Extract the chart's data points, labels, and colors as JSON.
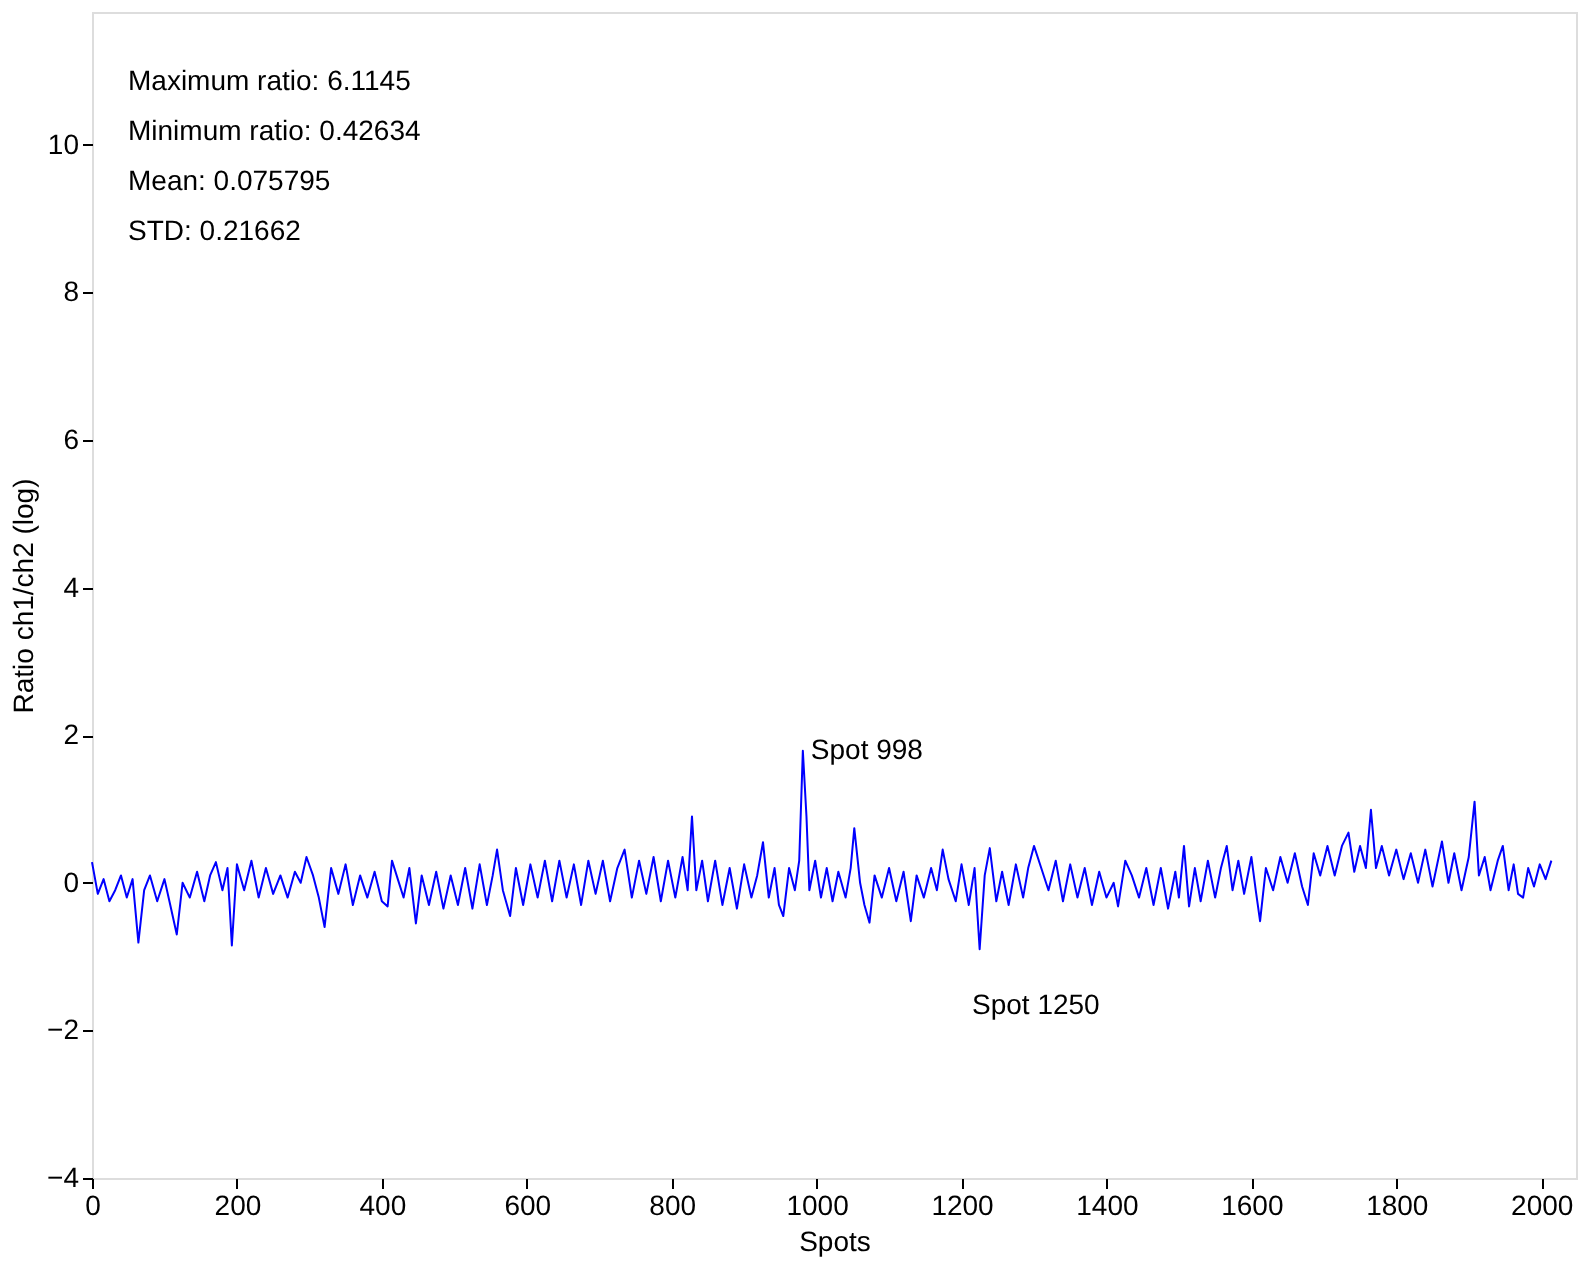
{
  "chart_data": {
    "type": "line",
    "xlabel": "Spots",
    "ylabel": "Ratio ch1/ch2 (log)",
    "xlim": [
      0,
      2048
    ],
    "xticks": [
      0,
      200,
      400,
      600,
      800,
      1000,
      1200,
      1400,
      1600,
      1800,
      2000
    ],
    "ylim": [
      -4,
      11.8
    ],
    "yticks": [
      -4,
      -2,
      0,
      2,
      4,
      6,
      8,
      10
    ],
    "grid": false,
    "marker": "none",
    "line_style": "solid",
    "annotations": [
      "Maximum ratio: 6.1145",
      "Minimum ratio: 0.42634",
      "Mean: 0.075795",
      "STD: 0.21662",
      {
        "text": "Spot 998",
        "x": 981,
        "y": 1.79
      },
      "Spot 1250"
    ],
    "series": [
      {
        "color": "#0000ff",
        "x": [
          0,
          8,
          16,
          24,
          32,
          40,
          48,
          56,
          64,
          72,
          80,
          90,
          100,
          108,
          117,
          125,
          135,
          145,
          155,
          163,
          171,
          180,
          187,
          193,
          200,
          210,
          220,
          230,
          240,
          250,
          260,
          270,
          280,
          288,
          296,
          305,
          313,
          321,
          330,
          340,
          350,
          360,
          370,
          380,
          390,
          400,
          408,
          414,
          422,
          430,
          438,
          447,
          455,
          465,
          475,
          485,
          495,
          505,
          515,
          525,
          535,
          545,
          553,
          559,
          567,
          577,
          585,
          595,
          605,
          615,
          625,
          635,
          645,
          655,
          665,
          675,
          685,
          695,
          705,
          715,
          725,
          735,
          745,
          755,
          765,
          775,
          785,
          795,
          805,
          815,
          822,
          828,
          834,
          842,
          850,
          860,
          870,
          880,
          890,
          900,
          910,
          918,
          926,
          934,
          942,
          948,
          954,
          962,
          970,
          976,
          981,
          986,
          990,
          998,
          1006,
          1014,
          1022,
          1030,
          1040,
          1047,
          1052,
          1060,
          1066,
          1073,
          1080,
          1090,
          1100,
          1110,
          1120,
          1130,
          1138,
          1148,
          1158,
          1166,
          1174,
          1182,
          1192,
          1200,
          1210,
          1218,
          1225,
          1232,
          1239,
          1248,
          1256,
          1265,
          1275,
          1285,
          1292,
          1300,
          1310,
          1320,
          1330,
          1340,
          1350,
          1360,
          1370,
          1380,
          1390,
          1400,
          1410,
          1416,
          1426,
          1435,
          1445,
          1455,
          1465,
          1475,
          1485,
          1495,
          1500,
          1507,
          1514,
          1522,
          1530,
          1540,
          1550,
          1558,
          1566,
          1574,
          1582,
          1590,
          1600,
          1606,
          1612,
          1620,
          1630,
          1640,
          1650,
          1660,
          1670,
          1678,
          1686,
          1695,
          1705,
          1715,
          1725,
          1734,
          1742,
          1750,
          1758,
          1765,
          1772,
          1780,
          1790,
          1800,
          1810,
          1820,
          1830,
          1840,
          1850,
          1863,
          1872,
          1880,
          1890,
          1900,
          1908,
          1914,
          1922,
          1930,
          1940,
          1947,
          1955,
          1962,
          1968,
          1975,
          1982,
          1990,
          1998,
          2006,
          2014
        ],
        "values": [
          0.28,
          -0.15,
          0.05,
          -0.25,
          -0.1,
          0.1,
          -0.2,
          0.05,
          -0.81,
          -0.1,
          0.1,
          -0.25,
          0.05,
          -0.3,
          -0.7,
          0.0,
          -0.2,
          0.15,
          -0.25,
          0.1,
          0.28,
          -0.1,
          0.2,
          -0.85,
          0.25,
          -0.1,
          0.3,
          -0.2,
          0.2,
          -0.15,
          0.1,
          -0.2,
          0.15,
          0.0,
          0.35,
          0.1,
          -0.2,
          -0.6,
          0.2,
          -0.15,
          0.25,
          -0.3,
          0.1,
          -0.2,
          0.15,
          -0.25,
          -0.32,
          0.3,
          0.05,
          -0.2,
          0.2,
          -0.55,
          0.1,
          -0.3,
          0.15,
          -0.35,
          0.1,
          -0.3,
          0.2,
          -0.35,
          0.25,
          -0.3,
          0.1,
          0.45,
          -0.1,
          -0.45,
          0.2,
          -0.3,
          0.25,
          -0.2,
          0.3,
          -0.25,
          0.3,
          -0.2,
          0.25,
          -0.3,
          0.3,
          -0.15,
          0.3,
          -0.25,
          0.2,
          0.45,
          -0.2,
          0.3,
          -0.15,
          0.35,
          -0.25,
          0.3,
          -0.2,
          0.35,
          -0.1,
          0.9,
          -0.1,
          0.3,
          -0.25,
          0.3,
          -0.3,
          0.2,
          -0.35,
          0.25,
          -0.2,
          0.1,
          0.55,
          -0.2,
          0.2,
          -0.3,
          -0.45,
          0.2,
          -0.1,
          0.3,
          1.79,
          0.9,
          -0.1,
          0.3,
          -0.2,
          0.2,
          -0.25,
          0.15,
          -0.2,
          0.2,
          0.74,
          0.0,
          -0.3,
          -0.54,
          0.1,
          -0.2,
          0.2,
          -0.25,
          0.15,
          -0.52,
          0.1,
          -0.2,
          0.2,
          -0.1,
          0.45,
          0.05,
          -0.25,
          0.25,
          -0.3,
          0.2,
          -0.9,
          0.1,
          0.47,
          -0.25,
          0.15,
          -0.3,
          0.25,
          -0.2,
          0.2,
          0.5,
          0.2,
          -0.1,
          0.3,
          -0.25,
          0.25,
          -0.2,
          0.2,
          -0.3,
          0.15,
          -0.2,
          0.0,
          -0.32,
          0.3,
          0.1,
          -0.2,
          0.2,
          -0.3,
          0.2,
          -0.35,
          0.15,
          -0.2,
          0.5,
          -0.32,
          0.2,
          -0.25,
          0.3,
          -0.2,
          0.2,
          0.5,
          -0.1,
          0.3,
          -0.15,
          0.35,
          -0.1,
          -0.52,
          0.2,
          -0.1,
          0.35,
          0.0,
          0.4,
          -0.05,
          -0.3,
          0.4,
          0.1,
          0.5,
          0.1,
          0.5,
          0.68,
          0.15,
          0.5,
          0.2,
          0.99,
          0.2,
          0.5,
          0.1,
          0.45,
          0.05,
          0.4,
          0.0,
          0.45,
          -0.05,
          0.56,
          0.0,
          0.4,
          -0.1,
          0.35,
          1.1,
          0.1,
          0.35,
          -0.1,
          0.3,
          0.5,
          -0.1,
          0.25,
          -0.15,
          -0.2,
          0.2,
          -0.05,
          0.25,
          0.05,
          0.3
        ]
      }
    ]
  }
}
